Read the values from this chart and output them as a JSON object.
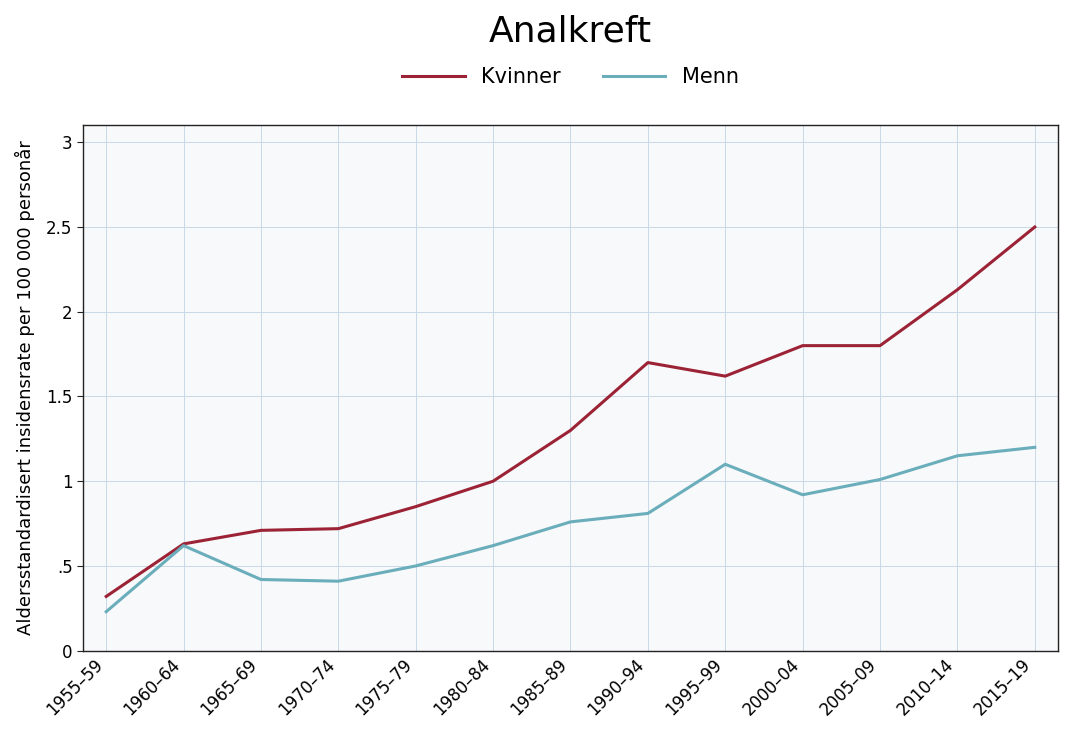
{
  "title": "Analkreft",
  "ylabel": "Aldersstandardisert insidensrate per 100 000 personår",
  "categories": [
    "1955–59",
    "1960–64",
    "1965–69",
    "1970–74",
    "1975–79",
    "1980–84",
    "1985–89",
    "1990–94",
    "1995–99",
    "2000–04",
    "2005–09",
    "2010–14",
    "2015–19"
  ],
  "kvinner": [
    0.32,
    0.63,
    0.71,
    0.72,
    0.85,
    1.0,
    1.3,
    1.7,
    1.62,
    1.8,
    1.8,
    2.13,
    2.5
  ],
  "menn": [
    0.23,
    0.62,
    0.42,
    0.41,
    0.5,
    0.62,
    0.76,
    0.81,
    1.1,
    0.92,
    1.01,
    1.15,
    1.2
  ],
  "kvinner_color": "#9B2335",
  "menn_color": "#6AADBB",
  "background_color": "#ffffff",
  "plot_bg_color": "#f8f9fb",
  "grid_color": "#c8d8e8",
  "ylim": [
    0,
    3.1
  ],
  "yticks": [
    0,
    0.5,
    1.0,
    1.5,
    2.0,
    2.5,
    3.0
  ],
  "ytick_labels": [
    "0",
    ".5",
    "1",
    "1.5",
    "2",
    "2.5",
    "3"
  ],
  "line_width": 2.2,
  "title_fontsize": 26,
  "axis_label_fontsize": 13,
  "tick_fontsize": 12,
  "legend_fontsize": 15
}
